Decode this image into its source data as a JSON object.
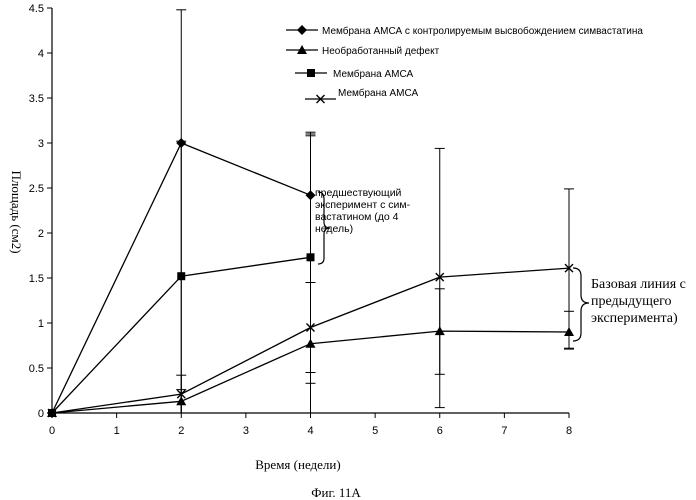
{
  "chart_data": {
    "type": "line",
    "xlabel": "Время (недели)",
    "ylabel": "Площадь (см2)",
    "xlim": [
      0,
      8
    ],
    "ylim": [
      0,
      4.5
    ],
    "x_ticks": [
      "0",
      "1",
      "2",
      "3",
      "4",
      "5",
      "6",
      "7",
      "8"
    ],
    "y_ticks": [
      "0",
      "0.5",
      "1",
      "1.5",
      "2",
      "2.5",
      "3",
      "3.5",
      "4",
      "4.5"
    ],
    "grid": false,
    "legend_position": "top-right",
    "series": [
      {
        "name": "Мембрана АМСА с контролируемым высвобождением симвастатина",
        "marker": "diamond",
        "x": [
          0,
          2,
          4
        ],
        "y": [
          0,
          3.0,
          2.42
        ],
        "err_low": [
          0,
          0.0,
          1.45
        ],
        "err_high": [
          0,
          4.48,
          3.12
        ]
      },
      {
        "name": "Необработанный дефект",
        "marker": "triangle",
        "x": [
          0,
          2,
          4,
          6,
          8
        ],
        "y": [
          0,
          0.13,
          0.77,
          0.91,
          0.9
        ],
        "err_low": [
          0,
          0.0,
          0.33,
          0.43,
          0.72
        ],
        "err_high": [
          0,
          0.26,
          1.45,
          1.38,
          1.13
        ]
      },
      {
        "name": "Мембрана АМСА",
        "marker": "square",
        "x": [
          0,
          2,
          4
        ],
        "y": [
          0,
          1.52,
          1.73
        ],
        "err_low": [
          0,
          0.0,
          0.0
        ],
        "err_high": [
          0,
          3.02,
          3.1
        ]
      },
      {
        "name": "Мембрана АМСА",
        "marker": "x",
        "x": [
          0,
          2,
          4,
          6,
          8
        ],
        "y": [
          0,
          0.21,
          0.95,
          1.51,
          1.61
        ],
        "err_low": [
          0,
          0.0,
          0.45,
          0.06,
          0.71
        ],
        "err_high": [
          0,
          0.42,
          3.08,
          2.94,
          2.49
        ]
      }
    ],
    "annotations": {
      "previous_experiment": [
        "предшествующий",
        "эксперимент с сим-",
        "вастатином (до 4",
        "недель)"
      ],
      "baseline": [
        "Базовая линия с",
        "предыдущего",
        "эксперимента)"
      ]
    },
    "caption": "Фиг. 11А"
  }
}
